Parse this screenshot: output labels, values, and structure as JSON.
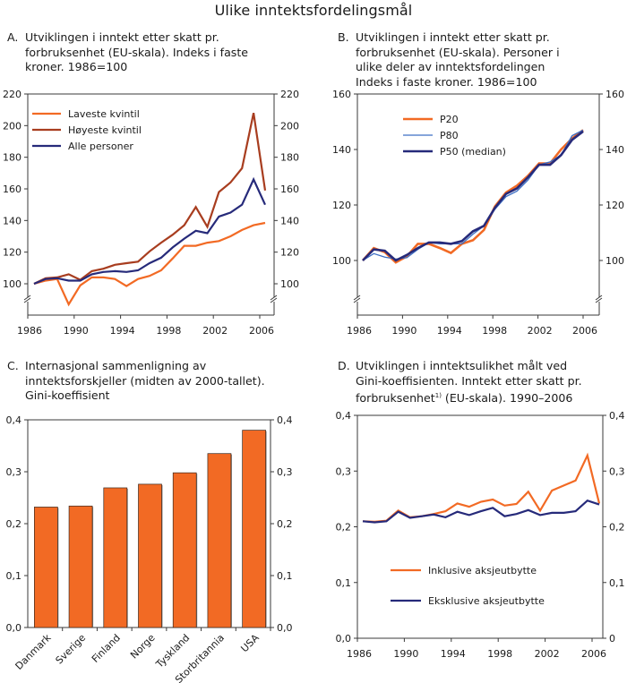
{
  "page": {
    "title": "Ulike inntektsfordelingsmål"
  },
  "chart_data": [
    {
      "id": "A",
      "letter": "A.",
      "type": "line",
      "title": "Utviklingen i inntekt etter skatt pr.\nforbruksenhet (EU-skala). Indeks i faste\nkroner. 1986=100",
      "xlabel": "",
      "ylabel": "",
      "ylim": [
        80,
        220
      ],
      "y_ticks": [
        100,
        120,
        140,
        160,
        180,
        200,
        220
      ],
      "y_tick_labels": [
        "100",
        "120",
        "140",
        "160",
        "180",
        "200",
        "220"
      ],
      "x_ticks": [
        1986,
        1990,
        1994,
        1998,
        2002,
        2006
      ],
      "x_tick_labels": [
        "1986",
        "1990",
        "1994",
        "1998",
        "2002",
        "2006"
      ],
      "axis_break": true,
      "legend_position": "top-left",
      "x": [
        1986,
        1987,
        1988,
        1989,
        1990,
        1991,
        1992,
        1993,
        1994,
        1995,
        1996,
        1997,
        1998,
        1999,
        2000,
        2001,
        2002,
        2003,
        2004,
        2005,
        2006
      ],
      "series": [
        {
          "name": "Laveste kvintil",
          "color": "#f26a24",
          "values": [
            100,
            102,
            103,
            87,
            99,
            104,
            104,
            103,
            98.5,
            103,
            105,
            108.5,
            116,
            124,
            124,
            126,
            127,
            130,
            134,
            137,
            138.5
          ]
        },
        {
          "name": "Høyeste kvintil",
          "color": "#a83d1f",
          "values": [
            100,
            103.5,
            104,
            106,
            102.5,
            108,
            109.5,
            112,
            113,
            114,
            120.5,
            126,
            131,
            137,
            148.5,
            136,
            158,
            164,
            173,
            208,
            159
          ]
        },
        {
          "name": "Alle personer",
          "color": "#262a7a",
          "values": [
            100,
            103,
            103.5,
            102,
            102,
            106,
            107.5,
            108,
            107.5,
            108.5,
            113,
            116.5,
            123,
            128.5,
            133.5,
            132,
            142.5,
            145,
            150,
            166,
            150
          ]
        }
      ]
    },
    {
      "id": "B",
      "letter": "B.",
      "type": "line",
      "title": "Utviklingen i inntekt etter skatt pr.\nforbruksenhet (EU-skala). Personer i\nulike deler av inntektsfordelingen\nIndeks i faste kroner. 1986=100",
      "xlabel": "",
      "ylabel": "",
      "ylim": [
        80,
        160
      ],
      "y_ticks": [
        100,
        120,
        140,
        160
      ],
      "y_tick_labels": [
        "100",
        "120",
        "140",
        "160"
      ],
      "x_ticks": [
        1986,
        1990,
        1994,
        1998,
        2002,
        2006
      ],
      "x_tick_labels": [
        "1986",
        "1990",
        "1994",
        "1998",
        "2002",
        "2006"
      ],
      "axis_break": true,
      "legend_position": "top-left",
      "x": [
        1986,
        1987,
        1988,
        1989,
        1990,
        1991,
        1992,
        1993,
        1994,
        1995,
        1996,
        1997,
        1998,
        1999,
        2000,
        2001,
        2002,
        2003,
        2004,
        2005,
        2006
      ],
      "series": [
        {
          "name": "P20",
          "color": "#f26a24",
          "values": [
            100,
            104.5,
            103,
            99.3,
            101.5,
            106,
            106,
            104.5,
            102.7,
            106,
            107.3,
            111,
            119.5,
            124.5,
            127,
            130.5,
            135,
            135,
            140,
            144,
            147
          ]
        },
        {
          "name": "P80",
          "color": "#3d6fc4",
          "values": [
            100,
            102.5,
            101.2,
            100.5,
            101,
            104,
            106.5,
            106,
            106,
            106,
            109.5,
            112.5,
            118.5,
            123,
            125,
            129,
            134.5,
            135.5,
            138,
            145,
            147
          ]
        },
        {
          "name": "P50 (median)",
          "color": "#262a7a",
          "values": [
            100,
            104,
            103.5,
            100,
            102,
            104.5,
            106.5,
            106.5,
            106,
            107,
            110.5,
            112.5,
            119,
            124,
            126,
            130,
            134.5,
            134.5,
            138,
            143.5,
            146.5
          ]
        }
      ]
    },
    {
      "id": "C",
      "letter": "C.",
      "type": "bar",
      "title": "Internasjonal sammenligning av\ninntektsforskjeller (midten av 2000-tallet).\nGini-koeffisient",
      "xlabel": "",
      "ylabel": "",
      "ylim": [
        0,
        0.4
      ],
      "y_ticks": [
        0,
        0.1,
        0.2,
        0.3,
        0.4
      ],
      "y_tick_labels": [
        "0,0",
        "0,1",
        "0,2",
        "0,3",
        "0,4"
      ],
      "categories": [
        "Danmark",
        "Sverige",
        "Finland",
        "Norge",
        "Tyskland",
        "Storbritannia",
        "USA"
      ],
      "values": [
        0.232,
        0.234,
        0.269,
        0.276,
        0.298,
        0.335,
        0.38
      ],
      "bar_color": "#f26a24"
    },
    {
      "id": "D",
      "letter": "D.",
      "type": "line",
      "title": "Utviklingen i inntektsulikhet målt ved\nGini-koeffisienten. Inntekt etter skatt pr.\nforbruksenhet",
      "title_superscript": "1)",
      "title_suffix": " (EU-skala). 1990–2006",
      "xlabel": "",
      "ylabel": "",
      "ylim": [
        0,
        0.4
      ],
      "y_ticks": [
        0,
        0.1,
        0.2,
        0.3,
        0.4
      ],
      "y_tick_labels": [
        "0,0",
        "0,1",
        "0,2",
        "0,3",
        "0,4"
      ],
      "y_tick_labels_right": [
        "0",
        "0,1",
        "0,2",
        "0,3",
        "0,4"
      ],
      "x_ticks": [
        1986,
        1990,
        1994,
        1998,
        2002,
        2006
      ],
      "x_tick_labels": [
        "1986",
        "1990",
        "1994",
        "1998",
        "2002",
        "2006"
      ],
      "legend_position": "bottom-left",
      "x": [
        1986,
        1987,
        1988,
        1989,
        1990,
        1991,
        1992,
        1993,
        1994,
        1995,
        1996,
        1997,
        1998,
        1999,
        2000,
        2001,
        2002,
        2003,
        2004,
        2005,
        2006
      ],
      "series": [
        {
          "name": "Inklusive aksjeutbytte",
          "color": "#f26a24",
          "values": [
            0.21,
            0.209,
            0.211,
            0.229,
            0.217,
            0.219,
            0.223,
            0.228,
            0.242,
            0.236,
            0.245,
            0.249,
            0.238,
            0.241,
            0.263,
            0.229,
            0.265,
            0.274,
            0.283,
            0.328,
            0.242
          ]
        },
        {
          "name": "Eksklusive aksjeutbytte",
          "color": "#262a7a",
          "values": [
            0.21,
            0.208,
            0.21,
            0.227,
            0.216,
            0.219,
            0.222,
            0.217,
            0.227,
            0.221,
            0.228,
            0.234,
            0.219,
            0.223,
            0.23,
            0.221,
            0.225,
            0.225,
            0.228,
            0.247,
            0.24
          ]
        }
      ]
    }
  ]
}
